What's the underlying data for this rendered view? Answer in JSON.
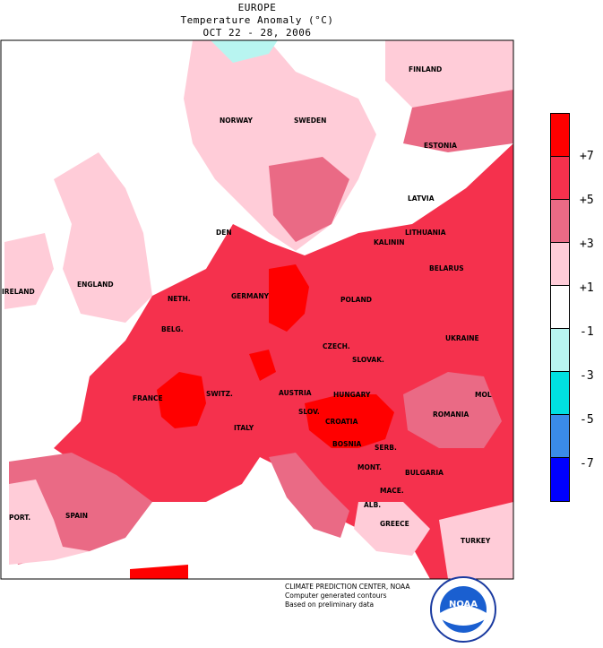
{
  "title": {
    "line1": "EUROPE",
    "line2": "Temperature Anomaly (°C)",
    "line3": "OCT 22 - 28, 2006"
  },
  "legend": {
    "ticks": [
      "+7",
      "+5",
      "+3",
      "+1",
      "-1",
      "-3",
      "-5",
      "-7"
    ],
    "colors": [
      "#ff0000",
      "#f5314d",
      "#ea6a85",
      "#ffccd8",
      "#ffffff",
      "#b8f5f0",
      "#00e0e0",
      "#3a8be8",
      "#0000ff"
    ]
  },
  "labels": {
    "finland": "FINLAND",
    "norway": "NORWAY",
    "sweden": "SWEDEN",
    "estonia": "ESTONIA",
    "latvia": "LATVIA",
    "lithuania": "LITHUANIA",
    "kaliningrad": "KALININ",
    "belarus": "BELARUS",
    "denmark": "DEN",
    "ireland": "IRELAND",
    "england": "ENGLAND",
    "netherlands": "NETH.",
    "belgium": "BELG.",
    "germany": "GERMANY",
    "poland": "POLAND",
    "czech": "CZECH.",
    "slovakia": "SLOVAK.",
    "ukraine": "UKRAINE",
    "france": "FRANCE",
    "switzerland": "SWITZ.",
    "austria": "AUSTRIA",
    "hungary": "HUNGARY",
    "moldova": "MOL",
    "romania": "ROMANIA",
    "slovenia": "SLOV.",
    "croatia": "CROATIA",
    "italy": "ITALY",
    "bosnia": "BOSNIA",
    "serbia": "SERB.",
    "bulgaria": "BULGARIA",
    "montenegro": "MONT.",
    "macedonia": "MACE.",
    "albania": "ALB.",
    "greece": "GREECE",
    "turkey": "TURKEY",
    "portugal": "PORT.",
    "spain": "SPAIN"
  },
  "credit": {
    "line1": "CLIMATE PREDICTION CENTER, NOAA",
    "line2": "Computer generated contours",
    "line3": "Based on preliminary data"
  },
  "logo": {
    "text": "NOAA"
  }
}
